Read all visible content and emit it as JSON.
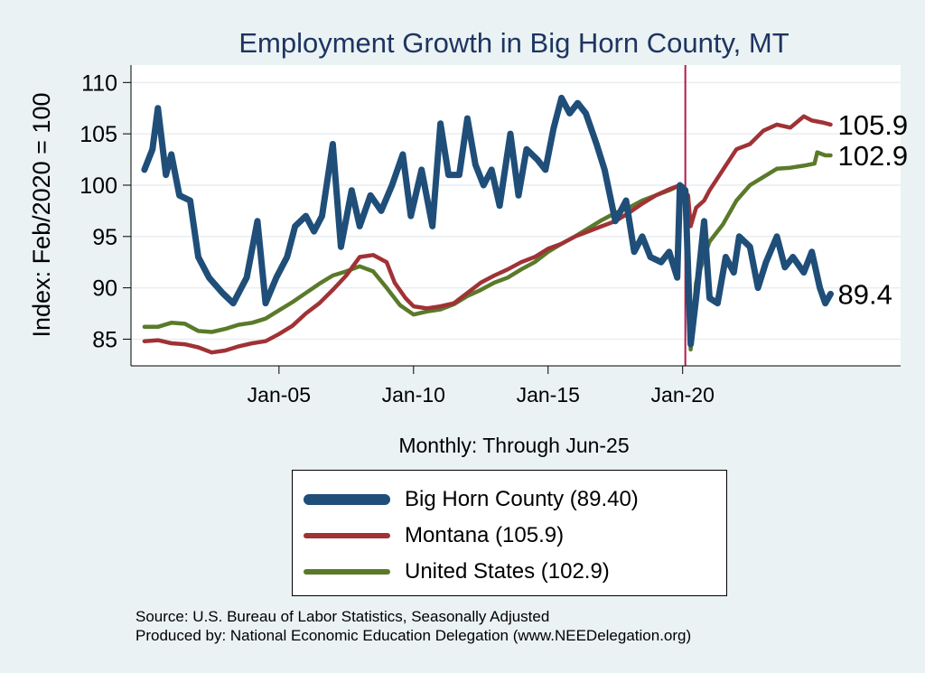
{
  "chart_data": {
    "type": "line",
    "title": "Employment Growth in Big Horn  County, MT",
    "ylabel": "Index: Feb/2020 = 100",
    "xlabel": "Monthly: Through Jun-25",
    "ylim": [
      82.4,
      111.7
    ],
    "xlim": [
      1999.5,
      2028.1
    ],
    "y_ticks": [
      85,
      90,
      95,
      100,
      105,
      110
    ],
    "x_ticks": [
      {
        "label": "Jan-05",
        "value": 2005.0
      },
      {
        "label": "Jan-10",
        "value": 2010.0
      },
      {
        "label": "Jan-15",
        "value": 2015.0
      },
      {
        "label": "Jan-20",
        "value": 2020.0
      }
    ],
    "reference_line": {
      "x": 2020.1,
      "color": "#b31b4b"
    },
    "grid": "horizontal",
    "series": [
      {
        "name": "Big Horn  County (89.40)",
        "color": "#1f4e79",
        "end_label": "89.4",
        "points": [
          [
            2000.0,
            101.5
          ],
          [
            2000.3,
            103.5
          ],
          [
            2000.5,
            107.5
          ],
          [
            2000.8,
            101.0
          ],
          [
            2001.0,
            103.0
          ],
          [
            2001.3,
            99.0
          ],
          [
            2001.7,
            98.5
          ],
          [
            2002.0,
            93.0
          ],
          [
            2002.4,
            91.0
          ],
          [
            2002.9,
            89.5
          ],
          [
            2003.3,
            88.5
          ],
          [
            2003.8,
            91.0
          ],
          [
            2004.2,
            96.5
          ],
          [
            2004.5,
            88.5
          ],
          [
            2004.9,
            91.0
          ],
          [
            2005.3,
            93.0
          ],
          [
            2005.6,
            96.0
          ],
          [
            2006.0,
            97.0
          ],
          [
            2006.3,
            95.5
          ],
          [
            2006.6,
            97.0
          ],
          [
            2007.0,
            104.0
          ],
          [
            2007.3,
            94.0
          ],
          [
            2007.7,
            99.5
          ],
          [
            2008.0,
            96.0
          ],
          [
            2008.4,
            99.0
          ],
          [
            2008.8,
            97.5
          ],
          [
            2009.2,
            100.0
          ],
          [
            2009.6,
            103.0
          ],
          [
            2009.9,
            97.0
          ],
          [
            2010.3,
            101.5
          ],
          [
            2010.7,
            96.0
          ],
          [
            2011.0,
            106.0
          ],
          [
            2011.3,
            101.0
          ],
          [
            2011.7,
            101.0
          ],
          [
            2012.0,
            106.5
          ],
          [
            2012.3,
            102.0
          ],
          [
            2012.6,
            100.0
          ],
          [
            2012.9,
            101.5
          ],
          [
            2013.2,
            98.0
          ],
          [
            2013.6,
            105.0
          ],
          [
            2013.9,
            99.0
          ],
          [
            2014.2,
            103.5
          ],
          [
            2014.6,
            102.5
          ],
          [
            2014.9,
            101.5
          ],
          [
            2015.2,
            105.5
          ],
          [
            2015.5,
            108.5
          ],
          [
            2015.8,
            107.0
          ],
          [
            2016.1,
            108.0
          ],
          [
            2016.4,
            107.0
          ],
          [
            2016.8,
            104.0
          ],
          [
            2017.1,
            101.5
          ],
          [
            2017.5,
            96.5
          ],
          [
            2017.9,
            98.5
          ],
          [
            2018.2,
            93.5
          ],
          [
            2018.5,
            95.0
          ],
          [
            2018.8,
            93.0
          ],
          [
            2019.2,
            92.5
          ],
          [
            2019.5,
            93.5
          ],
          [
            2019.8,
            91.0
          ],
          [
            2019.9,
            100.0
          ],
          [
            2020.1,
            99.5
          ],
          [
            2020.3,
            84.5
          ],
          [
            2020.5,
            89.0
          ],
          [
            2020.8,
            96.5
          ],
          [
            2021.0,
            89.0
          ],
          [
            2021.3,
            88.5
          ],
          [
            2021.6,
            93.0
          ],
          [
            2021.9,
            91.5
          ],
          [
            2022.1,
            95.0
          ],
          [
            2022.5,
            94.0
          ],
          [
            2022.8,
            90.0
          ],
          [
            2023.1,
            92.5
          ],
          [
            2023.5,
            95.0
          ],
          [
            2023.8,
            92.0
          ],
          [
            2024.1,
            93.0
          ],
          [
            2024.5,
            91.5
          ],
          [
            2024.8,
            93.5
          ],
          [
            2025.1,
            90.0
          ],
          [
            2025.3,
            88.5
          ],
          [
            2025.5,
            89.4
          ]
        ]
      },
      {
        "name": "Montana (105.9)",
        "color": "#a03236",
        "end_label": "105.9",
        "points": [
          [
            2000.0,
            84.8
          ],
          [
            2000.5,
            84.9
          ],
          [
            2001.0,
            84.6
          ],
          [
            2001.5,
            84.5
          ],
          [
            2002.0,
            84.2
          ],
          [
            2002.5,
            83.7
          ],
          [
            2003.0,
            83.9
          ],
          [
            2003.5,
            84.3
          ],
          [
            2004.0,
            84.6
          ],
          [
            2004.5,
            84.8
          ],
          [
            2005.0,
            85.5
          ],
          [
            2005.5,
            86.3
          ],
          [
            2006.0,
            87.5
          ],
          [
            2006.5,
            88.5
          ],
          [
            2007.0,
            89.8
          ],
          [
            2007.5,
            91.2
          ],
          [
            2008.0,
            93.0
          ],
          [
            2008.5,
            93.2
          ],
          [
            2009.0,
            92.5
          ],
          [
            2009.3,
            90.5
          ],
          [
            2009.7,
            89.0
          ],
          [
            2010.0,
            88.2
          ],
          [
            2010.5,
            88.0
          ],
          [
            2011.0,
            88.2
          ],
          [
            2011.5,
            88.5
          ],
          [
            2012.0,
            89.5
          ],
          [
            2012.5,
            90.5
          ],
          [
            2013.0,
            91.2
          ],
          [
            2013.5,
            91.8
          ],
          [
            2014.0,
            92.5
          ],
          [
            2014.5,
            93.0
          ],
          [
            2015.0,
            93.8
          ],
          [
            2015.5,
            94.3
          ],
          [
            2016.0,
            95.0
          ],
          [
            2016.5,
            95.5
          ],
          [
            2017.0,
            96.0
          ],
          [
            2017.5,
            96.5
          ],
          [
            2018.0,
            97.3
          ],
          [
            2018.5,
            98.2
          ],
          [
            2019.0,
            99.0
          ],
          [
            2019.5,
            99.6
          ],
          [
            2019.9,
            100.0
          ],
          [
            2020.2,
            99.0
          ],
          [
            2020.3,
            96.0
          ],
          [
            2020.5,
            97.8
          ],
          [
            2020.8,
            98.5
          ],
          [
            2021.0,
            99.5
          ],
          [
            2021.5,
            101.5
          ],
          [
            2022.0,
            103.5
          ],
          [
            2022.5,
            104.0
          ],
          [
            2023.0,
            105.3
          ],
          [
            2023.5,
            105.9
          ],
          [
            2024.0,
            105.6
          ],
          [
            2024.5,
            106.7
          ],
          [
            2024.8,
            106.3
          ],
          [
            2025.2,
            106.1
          ],
          [
            2025.5,
            105.9
          ]
        ]
      },
      {
        "name": "United States (102.9)",
        "color": "#5a7a2a",
        "end_label": "102.9",
        "points": [
          [
            2000.0,
            86.2
          ],
          [
            2000.5,
            86.2
          ],
          [
            2001.0,
            86.6
          ],
          [
            2001.5,
            86.5
          ],
          [
            2002.0,
            85.8
          ],
          [
            2002.5,
            85.7
          ],
          [
            2003.0,
            86.0
          ],
          [
            2003.5,
            86.4
          ],
          [
            2004.0,
            86.6
          ],
          [
            2004.5,
            87.0
          ],
          [
            2005.0,
            87.8
          ],
          [
            2005.5,
            88.6
          ],
          [
            2006.0,
            89.5
          ],
          [
            2006.5,
            90.4
          ],
          [
            2007.0,
            91.2
          ],
          [
            2007.5,
            91.6
          ],
          [
            2008.0,
            92.1
          ],
          [
            2008.5,
            91.6
          ],
          [
            2009.0,
            90.0
          ],
          [
            2009.5,
            88.3
          ],
          [
            2010.0,
            87.4
          ],
          [
            2010.5,
            87.7
          ],
          [
            2011.0,
            87.9
          ],
          [
            2011.5,
            88.4
          ],
          [
            2012.0,
            89.2
          ],
          [
            2012.5,
            89.8
          ],
          [
            2013.0,
            90.5
          ],
          [
            2013.5,
            91.0
          ],
          [
            2014.0,
            91.8
          ],
          [
            2014.5,
            92.5
          ],
          [
            2015.0,
            93.5
          ],
          [
            2015.5,
            94.3
          ],
          [
            2016.0,
            95.0
          ],
          [
            2016.5,
            95.8
          ],
          [
            2017.0,
            96.6
          ],
          [
            2017.5,
            97.3
          ],
          [
            2018.0,
            97.8
          ],
          [
            2018.5,
            98.5
          ],
          [
            2019.0,
            99.0
          ],
          [
            2019.5,
            99.5
          ],
          [
            2019.9,
            100.0
          ],
          [
            2020.1,
            99.5
          ],
          [
            2020.3,
            84.0
          ],
          [
            2020.5,
            90.5
          ],
          [
            2020.8,
            93.0
          ],
          [
            2021.0,
            94.5
          ],
          [
            2021.5,
            96.2
          ],
          [
            2022.0,
            98.5
          ],
          [
            2022.5,
            100.0
          ],
          [
            2023.0,
            100.8
          ],
          [
            2023.5,
            101.6
          ],
          [
            2024.0,
            101.7
          ],
          [
            2024.5,
            101.9
          ],
          [
            2024.9,
            102.1
          ],
          [
            2025.0,
            103.2
          ],
          [
            2025.3,
            102.9
          ],
          [
            2025.5,
            102.9
          ]
        ]
      }
    ]
  },
  "source": {
    "line1": "Source: U.S. Bureau of Labor Statistics, Seasonally Adjusted",
    "line2": "Produced by: National Economic Education Delegation (www.NEEDelegation.org)"
  }
}
